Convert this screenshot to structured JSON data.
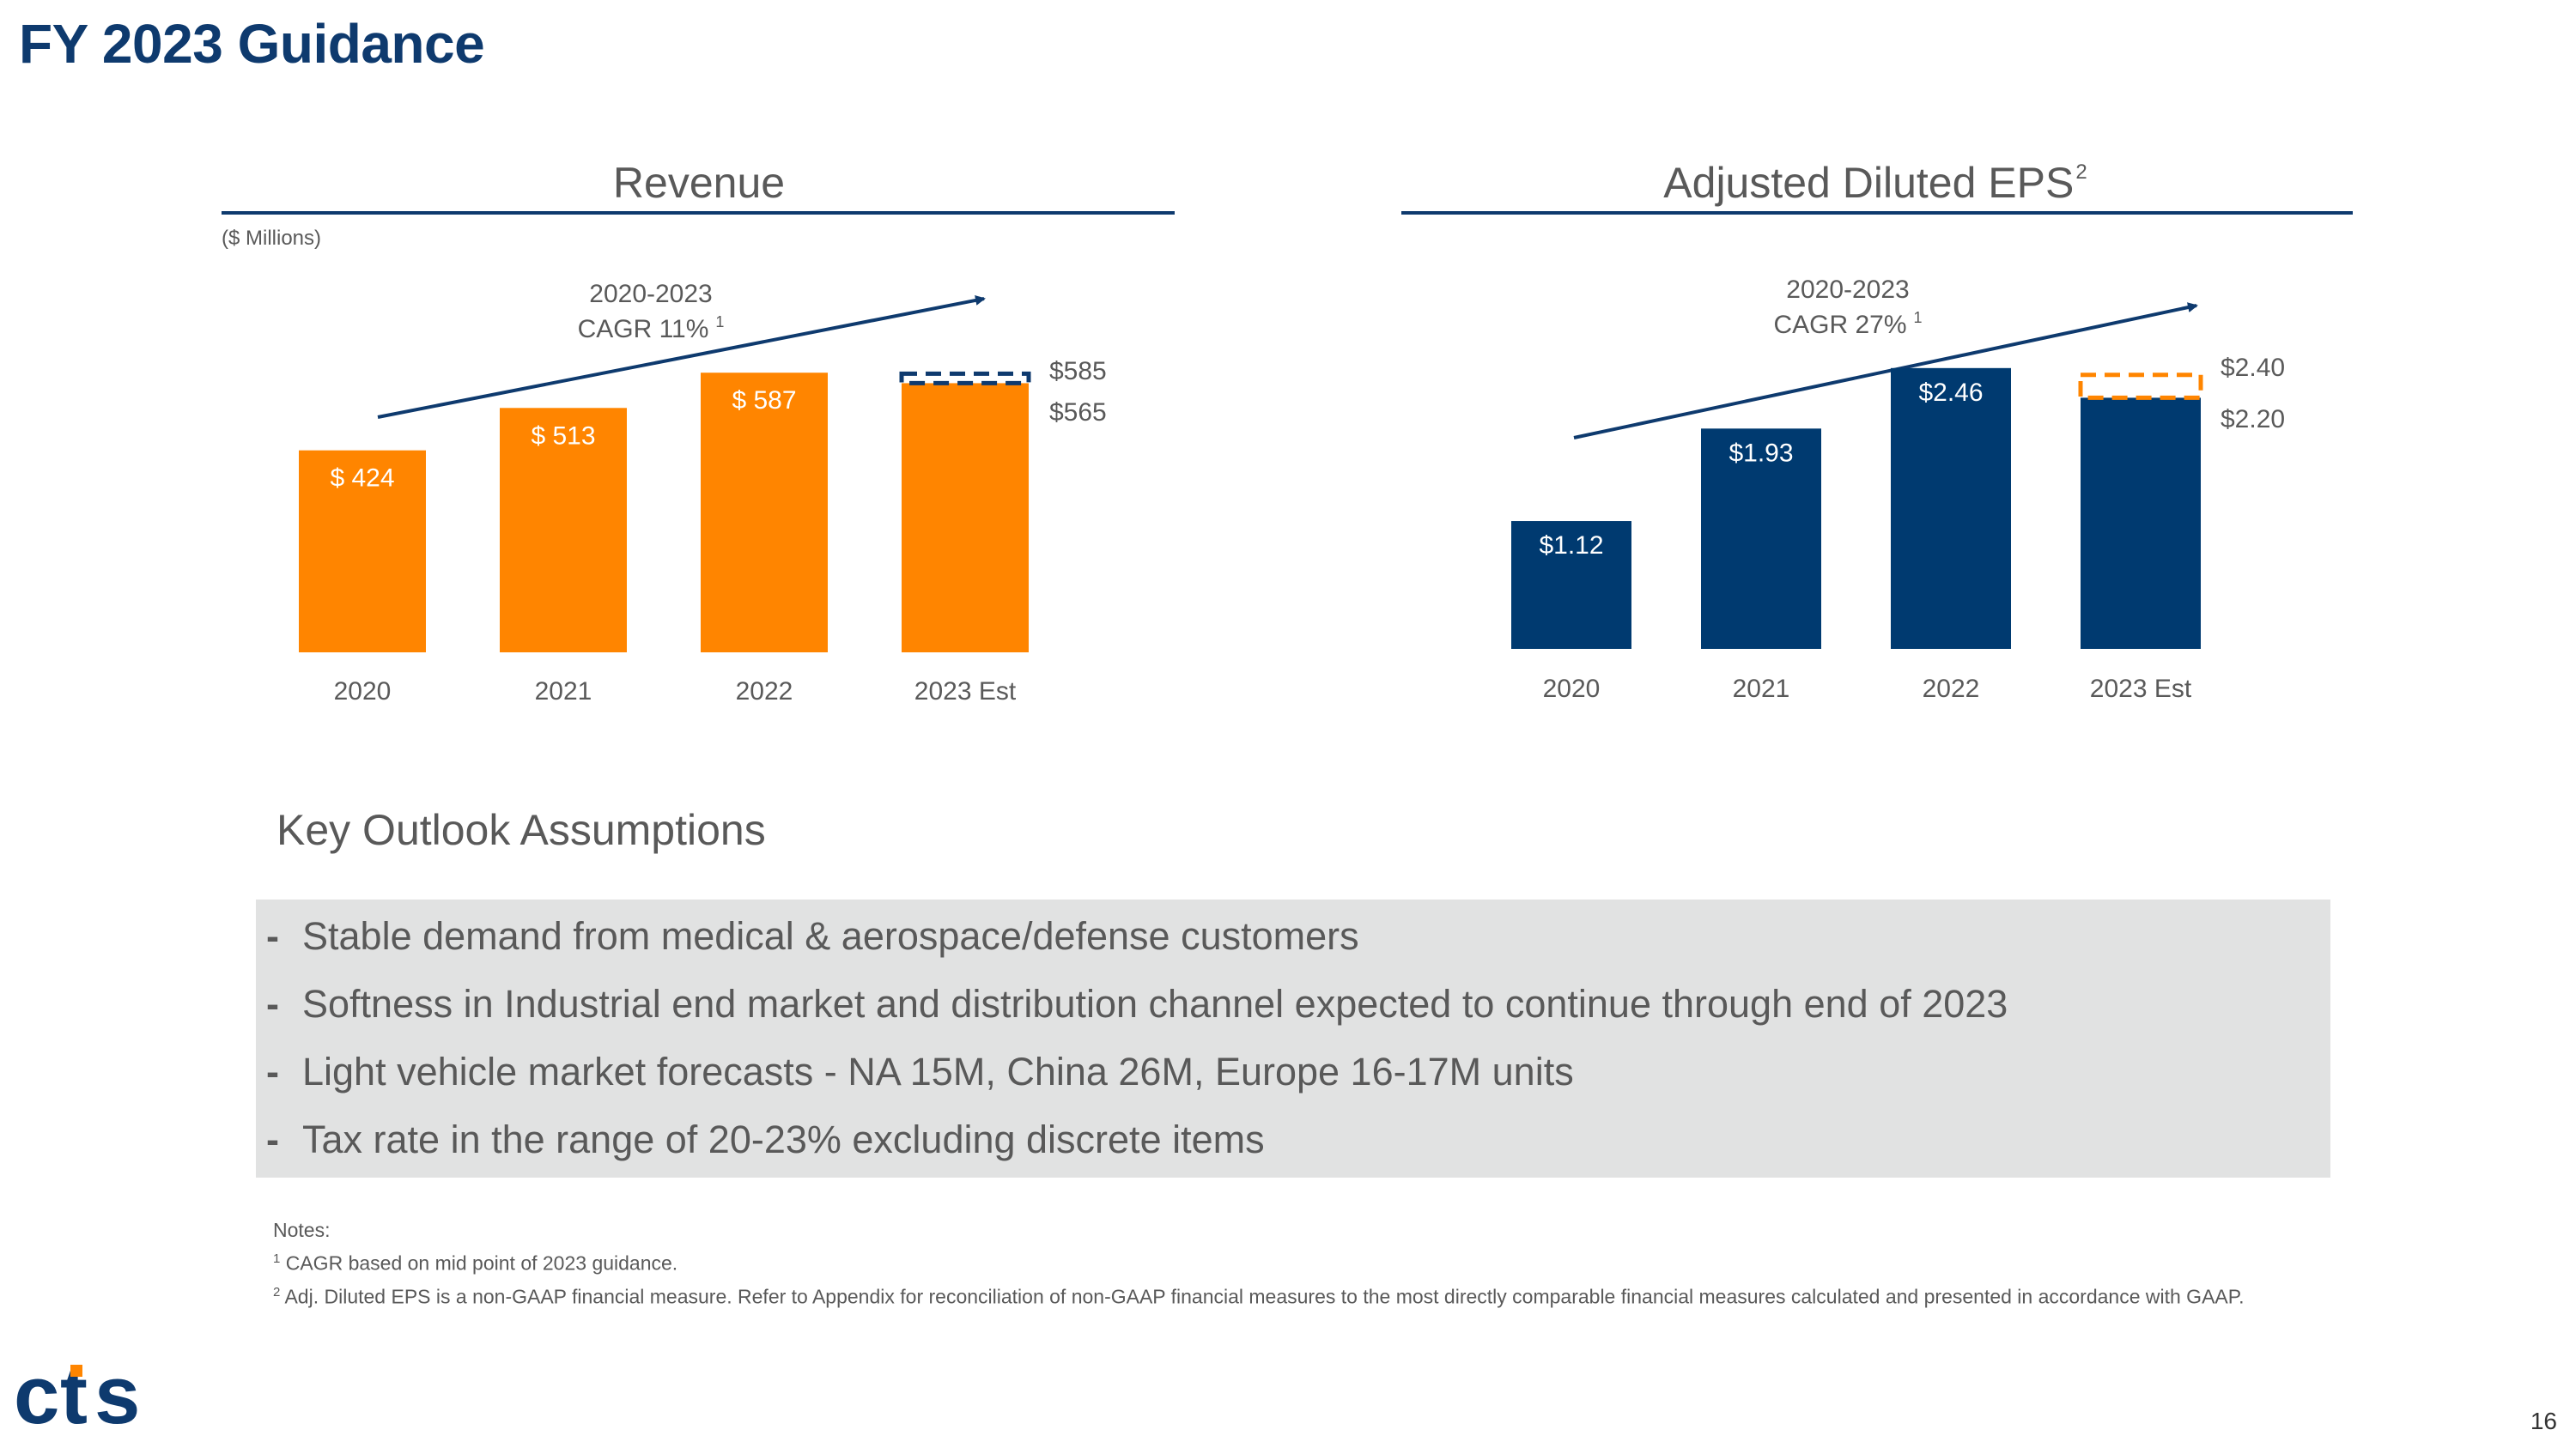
{
  "page": {
    "title": "FY 2023 Guidance",
    "page_number": "16",
    "logo_text": "cts"
  },
  "colors": {
    "navy": "#0e3a6e",
    "bar_navy": "#003a70",
    "orange": "#ff8500",
    "text_gray": "#595959",
    "panel_gray": "#e1e2e2"
  },
  "chart_data": [
    {
      "type": "bar",
      "title": "Revenue",
      "unit_note": "($ Millions)",
      "categories": [
        "2020",
        "2021",
        "2022",
        "2023 Est"
      ],
      "values": [
        424,
        513,
        587,
        565
      ],
      "data_labels": [
        "$ 424",
        "$ 513",
        "$ 587",
        ""
      ],
      "guidance_range": {
        "low": 565,
        "high": 585,
        "low_label": "$565",
        "high_label": "$585"
      },
      "trend": {
        "line1": "2020-2023",
        "line2": "CAGR 11%",
        "footnote": "1"
      },
      "bar_color": "#ff8500",
      "range_color": "#0e3a6e"
    },
    {
      "type": "bar",
      "title": "Adjusted Diluted EPS",
      "title_superscript": "2",
      "categories": [
        "2020",
        "2021",
        "2022",
        "2023 Est"
      ],
      "values": [
        1.12,
        1.93,
        2.46,
        2.2
      ],
      "data_labels": [
        "$1.12",
        "$1.93",
        "$2.46",
        ""
      ],
      "guidance_range": {
        "low": 2.2,
        "high": 2.4,
        "low_label": "$2.20",
        "high_label": "$2.40"
      },
      "trend": {
        "line1": "2020-2023",
        "line2": "CAGR 27%",
        "footnote": "1"
      },
      "bar_color": "#003a70",
      "range_color": "#ff8500"
    }
  ],
  "assumptions": {
    "heading": "Key Outlook Assumptions",
    "dash": "-",
    "items": [
      "Stable demand from medical & aerospace/defense customers",
      "Softness in Industrial end market and distribution channel expected to continue through end of 2023",
      "Light vehicle market forecasts - NA 15M, China 26M, Europe 16-17M units",
      "Tax rate in the range of 20-23% excluding discrete items"
    ]
  },
  "notes": {
    "heading": "Notes:",
    "note1_marker": "1",
    "note1": "CAGR based on mid point of 2023 guidance.",
    "note2_marker": "2",
    "note2": "Adj. Diluted EPS is a non-GAAP financial measure. Refer to Appendix for reconciliation of non-GAAP financial measures to the most directly comparable financial measures calculated and presented in accordance with GAAP."
  }
}
